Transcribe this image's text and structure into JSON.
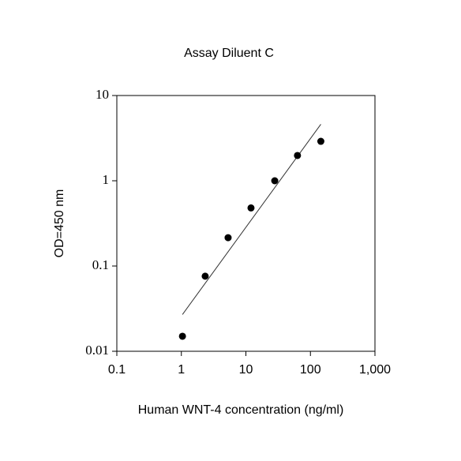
{
  "chart_data": {
    "type": "scatter",
    "title": "Assay Diluent C",
    "x_label": "Human WNT-4 concentration (ng/ml)",
    "y_label": "OD=450 nm",
    "x": [
      1.04,
      2.34,
      5.3,
      12,
      28,
      63,
      145
    ],
    "values": [
      0.015,
      0.076,
      0.215,
      0.48,
      1.0,
      1.98,
      2.9
    ],
    "color": "#000000",
    "fit": {
      "x": [
        1.04,
        145
      ],
      "values": [
        0.027,
        4.6
      ],
      "color": "#333333"
    },
    "xlog": true,
    "ylog": true,
    "xlim": [
      0.1,
      1000
    ],
    "ylim": [
      0.01,
      10
    ],
    "xticks": [
      0.1,
      1,
      10,
      100,
      {
        "value": 1000,
        "label": "1,000"
      }
    ],
    "yticks": [
      0.01,
      0.1,
      1,
      10
    ]
  }
}
